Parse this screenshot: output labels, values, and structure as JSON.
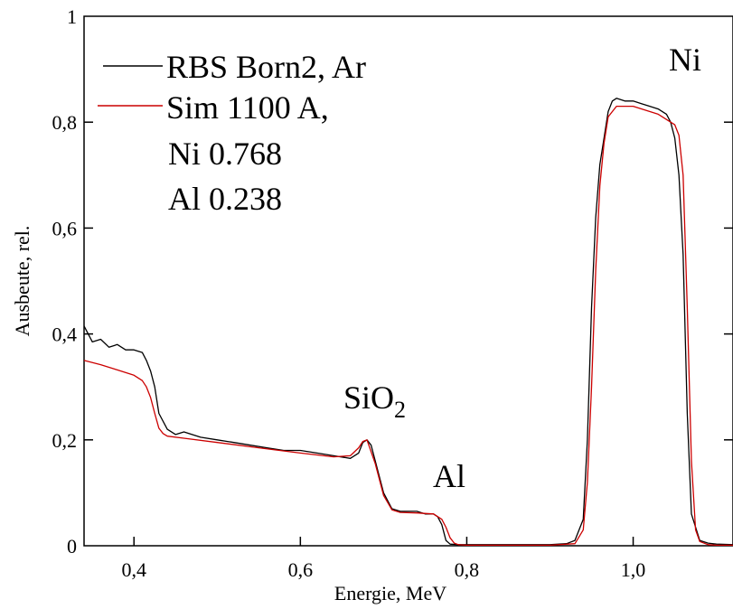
{
  "chart_data": {
    "type": "line",
    "xlabel": "Energie, MeV",
    "ylabel": "Ausbeute, rel.",
    "xlim": [
      0.34,
      1.12
    ],
    "ylim": [
      0,
      1
    ],
    "x_ticks": [
      0.4,
      0.6,
      0.8,
      1.0
    ],
    "x_tick_labels": [
      "0,4",
      "0,6",
      "0,8",
      "1,0"
    ],
    "y_ticks": [
      0,
      0.2,
      0.4,
      0.6,
      0.8,
      1
    ],
    "y_tick_labels": [
      "0",
      "0,2",
      "0,4",
      "0,6",
      "0,8",
      "1"
    ],
    "grid": false,
    "legend_position": "top-left",
    "legend": {
      "entries": [
        "RBS Born2, Ar",
        "Sim 1100 A,"
      ],
      "extra_lines": [
        "Ni 0.768",
        "Al 0.238"
      ]
    },
    "annotations": [
      {
        "text": "Ni",
        "x": 1.06,
        "y": 0.91
      },
      {
        "base": "SiO",
        "sub": "2",
        "x": 0.675,
        "y": 0.26
      },
      {
        "text": "Al",
        "x": 0.765,
        "y": 0.11
      }
    ],
    "series": [
      {
        "name": "RBS Born2, Ar",
        "color": "#000000",
        "x": [
          0.34,
          0.35,
          0.36,
          0.37,
          0.38,
          0.39,
          0.4,
          0.41,
          0.415,
          0.42,
          0.425,
          0.43,
          0.44,
          0.45,
          0.46,
          0.48,
          0.5,
          0.52,
          0.54,
          0.56,
          0.58,
          0.6,
          0.62,
          0.64,
          0.66,
          0.67,
          0.675,
          0.68,
          0.685,
          0.69,
          0.7,
          0.71,
          0.72,
          0.74,
          0.75,
          0.76,
          0.765,
          0.77,
          0.775,
          0.78,
          0.79,
          0.8,
          0.82,
          0.84,
          0.86,
          0.88,
          0.9,
          0.92,
          0.93,
          0.94,
          0.945,
          0.95,
          0.955,
          0.96,
          0.965,
          0.97,
          0.975,
          0.98,
          0.99,
          1.0,
          1.01,
          1.02,
          1.03,
          1.04,
          1.045,
          1.05,
          1.055,
          1.06,
          1.065,
          1.07,
          1.08,
          1.09,
          1.1,
          1.12
        ],
        "y": [
          0.415,
          0.385,
          0.39,
          0.375,
          0.38,
          0.37,
          0.37,
          0.365,
          0.35,
          0.33,
          0.3,
          0.25,
          0.22,
          0.21,
          0.215,
          0.205,
          0.2,
          0.195,
          0.19,
          0.185,
          0.18,
          0.18,
          0.175,
          0.17,
          0.165,
          0.175,
          0.195,
          0.2,
          0.19,
          0.16,
          0.1,
          0.07,
          0.065,
          0.065,
          0.06,
          0.06,
          0.055,
          0.04,
          0.01,
          0.003,
          0.002,
          0.002,
          0.002,
          0.002,
          0.002,
          0.002,
          0.002,
          0.004,
          0.01,
          0.05,
          0.2,
          0.45,
          0.62,
          0.72,
          0.77,
          0.82,
          0.84,
          0.845,
          0.84,
          0.84,
          0.835,
          0.83,
          0.825,
          0.815,
          0.8,
          0.77,
          0.7,
          0.55,
          0.25,
          0.06,
          0.01,
          0.005,
          0.003,
          0.002
        ]
      },
      {
        "name": "Sim 1100 A,",
        "color": "#cc0000",
        "x": [
          0.34,
          0.36,
          0.38,
          0.4,
          0.41,
          0.415,
          0.42,
          0.425,
          0.43,
          0.435,
          0.44,
          0.46,
          0.5,
          0.55,
          0.6,
          0.64,
          0.66,
          0.67,
          0.675,
          0.68,
          0.69,
          0.7,
          0.71,
          0.72,
          0.74,
          0.76,
          0.77,
          0.775,
          0.78,
          0.785,
          0.79,
          0.8,
          0.85,
          0.9,
          0.93,
          0.94,
          0.945,
          0.95,
          0.955,
          0.96,
          0.965,
          0.97,
          0.98,
          1.0,
          1.03,
          1.05,
          1.055,
          1.06,
          1.065,
          1.07,
          1.075,
          1.08,
          1.09,
          1.1,
          1.12
        ],
        "y": [
          0.35,
          0.342,
          0.332,
          0.322,
          0.312,
          0.3,
          0.28,
          0.25,
          0.222,
          0.212,
          0.207,
          0.203,
          0.195,
          0.185,
          0.175,
          0.168,
          0.17,
          0.185,
          0.197,
          0.2,
          0.155,
          0.095,
          0.068,
          0.063,
          0.062,
          0.06,
          0.05,
          0.035,
          0.015,
          0.005,
          0.002,
          0.001,
          0.001,
          0.001,
          0.004,
          0.03,
          0.12,
          0.3,
          0.52,
          0.68,
          0.76,
          0.81,
          0.83,
          0.83,
          0.815,
          0.795,
          0.775,
          0.7,
          0.45,
          0.16,
          0.03,
          0.008,
          0.002,
          0.001,
          0.001
        ]
      }
    ]
  }
}
